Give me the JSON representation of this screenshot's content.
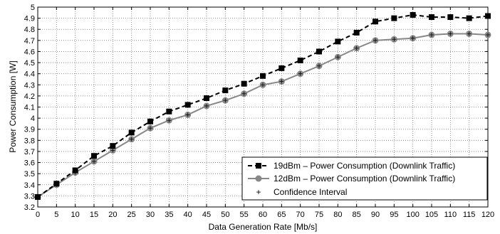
{
  "chart_data": {
    "type": "line",
    "title": "",
    "xlabel": "Data Generation Rate [Mb/s]",
    "ylabel": "Power Consumption [W]",
    "xlim": [
      0,
      120
    ],
    "ylim": [
      3.2,
      5.0
    ],
    "xticks": [
      0,
      5,
      10,
      15,
      20,
      25,
      30,
      35,
      40,
      45,
      50,
      55,
      60,
      65,
      70,
      75,
      80,
      85,
      90,
      95,
      100,
      105,
      110,
      115,
      120
    ],
    "yticks": [
      3.2,
      3.3,
      3.4,
      3.5,
      3.6,
      3.7,
      3.8,
      3.9,
      4.0,
      4.1,
      4.2,
      4.3,
      4.4,
      4.5,
      4.6,
      4.7,
      4.8,
      4.9,
      5.0
    ],
    "ytick_labels": [
      "3.2",
      "3.3",
      "3.4",
      "3.5",
      "3.6",
      "3.7",
      "3.8",
      "3.9",
      "4",
      "4.1",
      "4.2",
      "4.3",
      "4.4",
      "4.5",
      "4.6",
      "4.7",
      "4.8",
      "4.9",
      "5"
    ],
    "grid": true,
    "legend_position": "bottom-right",
    "x": [
      0,
      5,
      10,
      15,
      20,
      25,
      30,
      35,
      40,
      45,
      50,
      55,
      60,
      65,
      70,
      75,
      80,
      85,
      90,
      95,
      100,
      105,
      110,
      115,
      120
    ],
    "series": [
      {
        "name": "19dBm – Power Consumption (Downlink Traffic)",
        "style": "dashed",
        "marker": "square",
        "color": "#000000",
        "values": [
          3.29,
          3.41,
          3.53,
          3.66,
          3.75,
          3.87,
          3.97,
          4.06,
          4.12,
          4.18,
          4.25,
          4.31,
          4.38,
          4.45,
          4.52,
          4.6,
          4.69,
          4.77,
          4.87,
          4.9,
          4.93,
          4.91,
          4.91,
          4.9,
          4.92
        ]
      },
      {
        "name": "12dBm – Power Consumption (Downlink Traffic)",
        "style": "solid",
        "marker": "circle",
        "color": "#888888",
        "values": [
          3.29,
          3.4,
          3.51,
          3.61,
          3.71,
          3.81,
          3.91,
          3.98,
          4.03,
          4.11,
          4.16,
          4.22,
          4.3,
          4.33,
          4.4,
          4.47,
          4.55,
          4.63,
          4.7,
          4.71,
          4.72,
          4.75,
          4.76,
          4.76,
          4.75
        ]
      }
    ],
    "legend_extra": "Confidence Interval"
  }
}
